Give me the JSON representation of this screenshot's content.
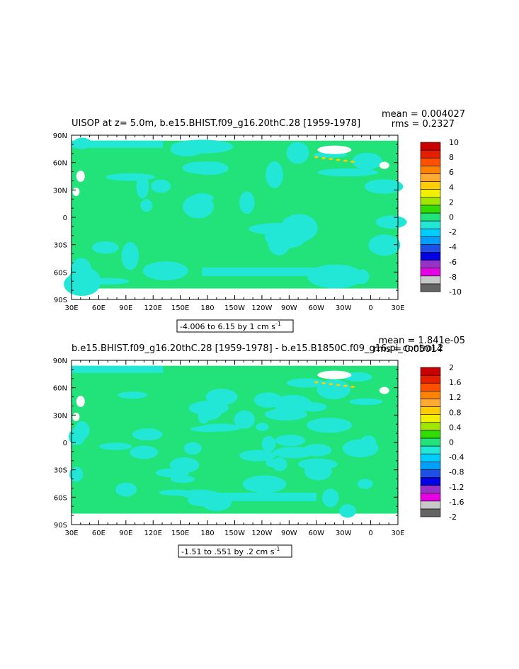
{
  "colors": {
    "ocean_base": "#22E27A",
    "ocean_neg": "#22E7D6",
    "ocean_pos": "#FFCC00",
    "land": "#ffffff",
    "frame": "#000000"
  },
  "chart_data": [
    {
      "type": "heatmap",
      "title": "UISOP at z=    5.0m, b.e15.BHIST.f09_g16.20thC.28 [1959-1978]",
      "mean_text": "mean = 0.004027",
      "rms_text": "rms = 0.2327",
      "range_text": "-4.006 to 6.15 by 1 cm s",
      "range_sup": "-1",
      "x_ticks": [
        "30E",
        "60E",
        "90E",
        "120E",
        "150E",
        "180",
        "150W",
        "120W",
        "90W",
        "60W",
        "30W",
        "0",
        "30E"
      ],
      "y_ticks": [
        "90N",
        "60N",
        "30N",
        "0",
        "30S",
        "60S",
        "90S"
      ],
      "colorbar": {
        "colors": [
          "#646464",
          "#C8C8C8",
          "#E600E6",
          "#9632C8",
          "#0000E6",
          "#1E50E6",
          "#00A0FF",
          "#00CDFF",
          "#22E7D6",
          "#22E27A",
          "#32DC00",
          "#A0E600",
          "#F0F000",
          "#FFCC00",
          "#FFAA32",
          "#FF8200",
          "#FF5000",
          "#E61E00",
          "#C80000"
        ],
        "labels": [
          "10",
          "8",
          "6",
          "4",
          "2",
          "0",
          "-2",
          "-4",
          "-6",
          "-8",
          "-10"
        ]
      }
    },
    {
      "type": "heatmap",
      "title": "b.e15.BHIST.f09_g16.20thC.28 [1959-1978] - b.e15.B1850C.f09_g16.pi_control.2",
      "mean_text": "mean = 1.841e-05",
      "rms_text": "rms = 0.05014",
      "range_text": "-1.51 to .551 by .2 cm s",
      "range_sup": "-1",
      "x_ticks": [
        "30E",
        "60E",
        "90E",
        "120E",
        "150E",
        "180",
        "150W",
        "120W",
        "90W",
        "60W",
        "30W",
        "0",
        "30E"
      ],
      "y_ticks": [
        "90N",
        "60N",
        "30N",
        "0",
        "30S",
        "60S",
        "90S"
      ],
      "colorbar": {
        "colors": [
          "#646464",
          "#C8C8C8",
          "#E600E6",
          "#9632C8",
          "#0000E6",
          "#1E50E6",
          "#00A0FF",
          "#00CDFF",
          "#22E7D6",
          "#22E27A",
          "#32DC00",
          "#A0E600",
          "#F0F000",
          "#FFCC00",
          "#FFAA32",
          "#FF8200",
          "#FF5000",
          "#E61E00",
          "#C80000"
        ],
        "labels": [
          "2",
          "1.6",
          "1.2",
          "0.8",
          "0.4",
          "0",
          "-0.4",
          "-0.8",
          "-1.2",
          "-1.6",
          "-2"
        ]
      }
    }
  ]
}
